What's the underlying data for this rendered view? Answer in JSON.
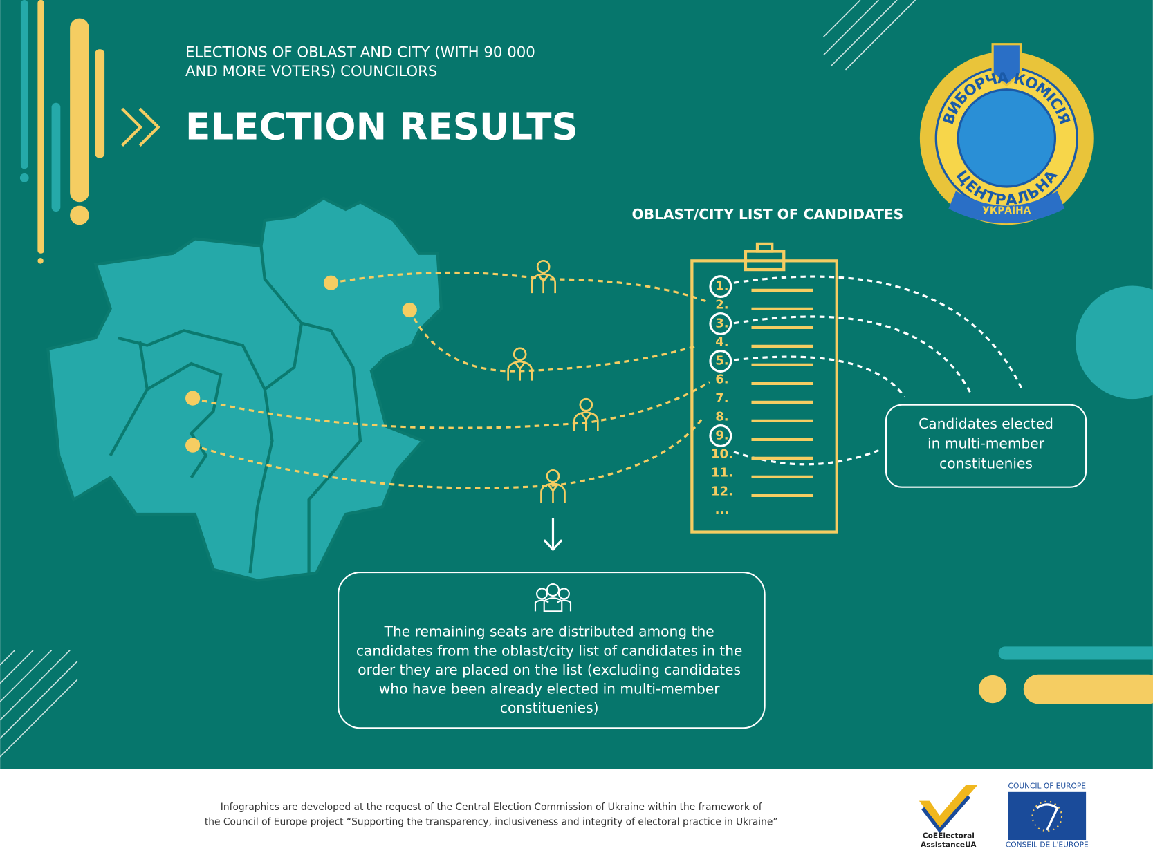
{
  "header": {
    "subtitle": [
      "ELECTIONS OF OBLAST AND CITY (WITH 90 000",
      "AND MORE VOTERS) COUNCILORS"
    ],
    "title": "ELECTION RESULTS"
  },
  "seal": {
    "top": "ВИБОРЧА КОМІСІЯ",
    "bottom": "ЦЕНТРАЛЬНА",
    "ribbon": "УКРАЇНА"
  },
  "list": {
    "title": "OBLAST/CITY LIST OF CANDIDATES",
    "items": [
      "1.",
      "2.",
      "3.",
      "4.",
      "5.",
      "6.",
      "7.",
      "8.",
      "9.",
      "10.",
      "11.",
      "12.",
      "..."
    ]
  },
  "callout": {
    "lines": [
      "Candidates elected",
      "in multi-member",
      "constituenies"
    ]
  },
  "remaining": {
    "lines": [
      "The remaining seats are distributed among the",
      "candidates from the oblast/city list of candidates in the",
      "order they are placed on the list  (excluding candidates",
      "who have been already elected in multi-member",
      "constituenies)"
    ]
  },
  "footer": {
    "lines": [
      "Infographics are developed at the request of the Central Election Commission of Ukraine within the framework of",
      "the Council of Europe project  “Supporting the transparency, inclusiveness and integrity of electoral practice in Ukraine”"
    ],
    "logo1": [
      "CoEElectoral",
      "AssistanceUA"
    ],
    "logo2_top": "COUNCIL OF EUROPE",
    "logo2_bottom": "CONSEIL DE L'EUROPE"
  }
}
